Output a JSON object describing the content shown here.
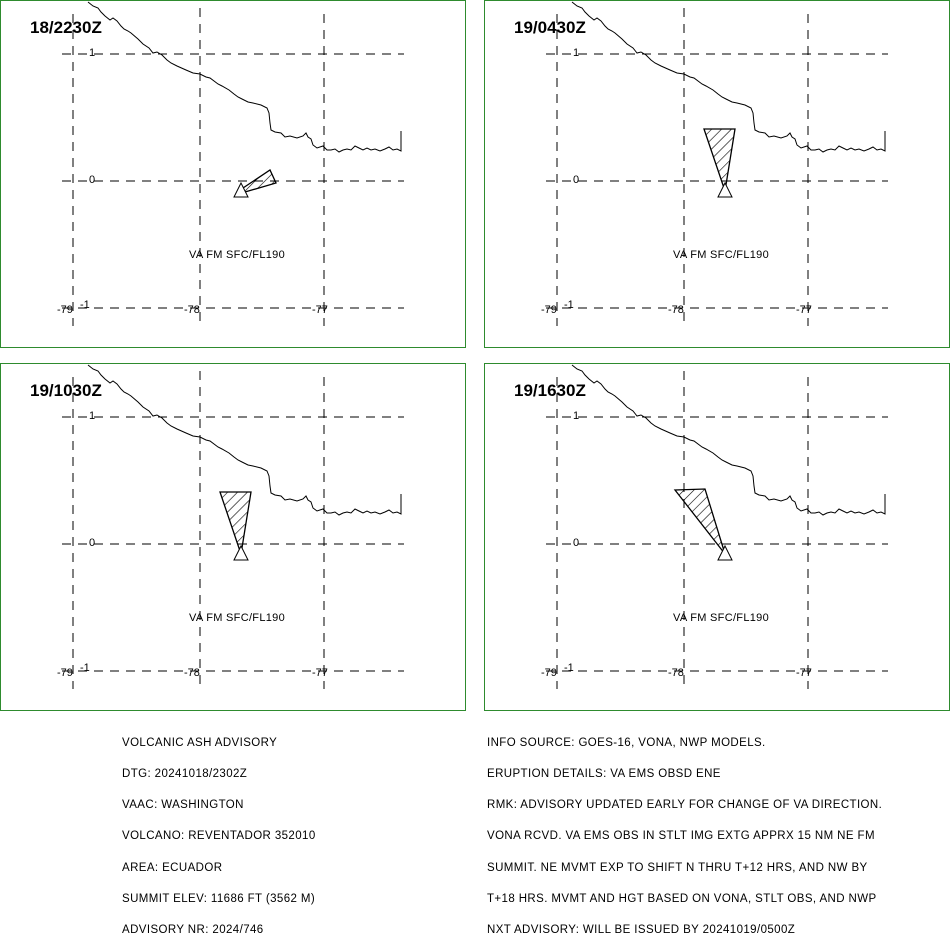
{
  "panels": [
    {
      "time": "18/2230Z",
      "level": "VA FM SFC/FL190",
      "plume": "A"
    },
    {
      "time": "19/0430Z",
      "level": "VA FM SFC/FL190",
      "plume": "B"
    },
    {
      "time": "19/1030Z",
      "level": "VA FM SFC/FL190",
      "plume": "B"
    },
    {
      "time": "19/1630Z",
      "level": "VA FM SFC/FL190",
      "plume": "C"
    }
  ],
  "axes": {
    "lat_labels": [
      "1",
      "0",
      "-1"
    ],
    "lon_labels": [
      "-79",
      "-78",
      "-77"
    ]
  },
  "advisory_left": [
    "VOLCANIC ASH ADVISORY",
    "DTG: 20241018/2302Z",
    "VAAC: WASHINGTON",
    "VOLCANO: REVENTADOR 352010",
    "AREA: ECUADOR",
    "SUMMIT ELEV: 11686 FT (3562 M)",
    "ADVISORY NR: 2024/746"
  ],
  "advisory_right": [
    "INFO SOURCE: GOES-16, VONA, NWP MODELS.",
    "ERUPTION DETAILS: VA EMS OBSD ENE",
    "RMK: ADVISORY UPDATED EARLY FOR CHANGE OF VA DIRECTION.",
    "VONA RCVD. VA EMS OBS IN STLT IMG EXTG APPRX 15 NM NE FM",
    "SUMMIT. NE MVMT EXP TO SHIFT N THRU T+12 HRS, AND NW BY",
    "T+18 HRS. MVMT AND HGT BASED ON VONA, STLT OBS, AND NWP",
    "NXT ADVISORY: WILL BE ISSUED BY 20241019/0500Z"
  ],
  "colors": {
    "frame": "#2e8b2e",
    "ink": "#000000"
  }
}
